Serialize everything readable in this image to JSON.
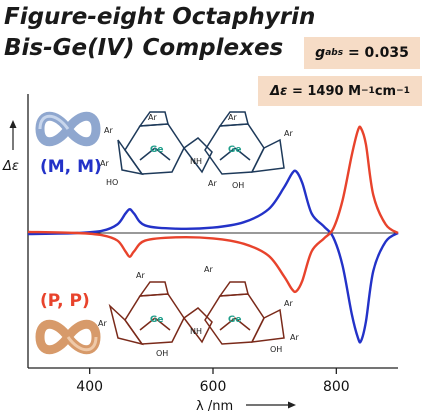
{
  "title_lines": [
    "Figure-eight Octaphyrin",
    "Bis-Ge(IV) Complexes"
  ],
  "gabs": {
    "symbol": "g",
    "subscript": "abs",
    "value": "= 0.035"
  },
  "delta_eps": {
    "symbol": "Δε",
    "value": "= 1490 M",
    "exp1": "−1",
    "unit": "cm",
    "exp2": "−1"
  },
  "labels": {
    "mm": "(M, M)",
    "pp": "(P, P)"
  },
  "molecule_text": {
    "ar": "Ar",
    "ge": "Ge",
    "oh": "OH",
    "ho": "HO",
    "nh": "NH",
    "n": "N"
  },
  "colors": {
    "mm": "#2332c8",
    "pp": "#e8432c",
    "mm_molecule": "#1e3a5a",
    "pp_molecule": "#7a2a1a",
    "infinity_blue": "#8fa7cf",
    "infinity_orange": "#d79a6a",
    "box": "#f6dcc6"
  },
  "icons": [
    "infinity-symbol-blue-icon",
    "infinity-symbol-orange-icon",
    "molecule-structure-mm",
    "molecule-structure-pp"
  ],
  "chart_data": {
    "type": "line",
    "xlabel": "λ /nm",
    "ylabel": "Δε",
    "xlim": [
      300,
      900
    ],
    "ylim": [
      -1,
      1
    ],
    "xticks": [
      400,
      600,
      800
    ],
    "zero_line": true,
    "series": [
      {
        "name": "(M, M)",
        "color": "#2332c8",
        "x": [
          300,
          380,
          420,
          445,
          458,
          465,
          472,
          490,
          540,
          600,
          650,
          690,
          715,
          728,
          735,
          745,
          760,
          780,
          795,
          810,
          825,
          835,
          840,
          848,
          860,
          880,
          900
        ],
        "y": [
          -0.01,
          0.0,
          0.02,
          0.08,
          0.18,
          0.22,
          0.18,
          0.07,
          0.04,
          0.05,
          0.1,
          0.22,
          0.42,
          0.55,
          0.57,
          0.46,
          0.18,
          0.06,
          -0.04,
          -0.3,
          -0.75,
          -0.97,
          -1.0,
          -0.82,
          -0.35,
          -0.08,
          0.0
        ]
      },
      {
        "name": "(P, P)",
        "color": "#e8432c",
        "x": [
          300,
          380,
          420,
          445,
          458,
          465,
          472,
          490,
          540,
          600,
          650,
          690,
          715,
          728,
          735,
          745,
          760,
          780,
          795,
          810,
          825,
          835,
          840,
          848,
          860,
          880,
          900
        ],
        "y": [
          0.01,
          0.0,
          -0.02,
          -0.07,
          -0.17,
          -0.22,
          -0.17,
          -0.07,
          -0.04,
          -0.05,
          -0.1,
          -0.21,
          -0.4,
          -0.52,
          -0.54,
          -0.44,
          -0.17,
          -0.05,
          0.04,
          0.3,
          0.72,
          0.95,
          0.97,
          0.82,
          0.35,
          0.08,
          0.0
        ]
      }
    ]
  }
}
